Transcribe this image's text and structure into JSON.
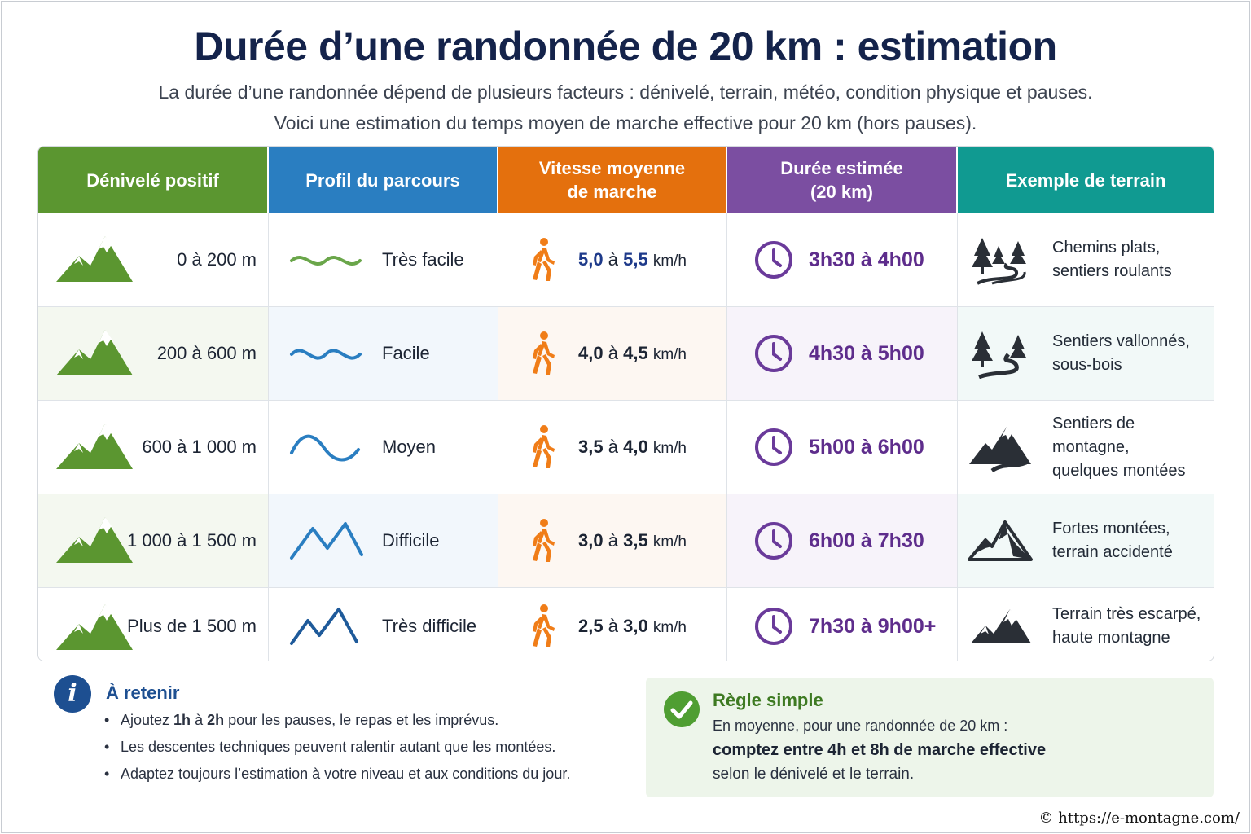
{
  "title": "Durée d’une randonnée de 20 km : estimation",
  "intro": {
    "line1": "La durée d’une randonnée dépend de plusieurs facteurs : dénivelé, terrain, météo, condition physique et pauses.",
    "line2": "Voici une estimation du temps moyen de marche effective pour 20 km (hors pauses)."
  },
  "table": {
    "headers": [
      {
        "line1": "Dénivelé positif",
        "line2": ""
      },
      {
        "line1": "Profil du parcours",
        "line2": ""
      },
      {
        "line1": "Vitesse moyenne",
        "line2": "de marche"
      },
      {
        "line1": "Durée estimée",
        "line2": "(20 km)"
      },
      {
        "line1": "Exemple de terrain",
        "line2": ""
      }
    ],
    "header_colors": [
      "#5b9630",
      "#2a7ec1",
      "#e4700d",
      "#7b4ea1",
      "#109a91"
    ],
    "rows": [
      {
        "elevation": "0 à 200 m",
        "level": "Très facile",
        "speed_a": "5,0",
        "speed_sep": "à",
        "speed_b": "5,5",
        "speed_unit": "km/h",
        "duration": "3h30 à 4h00",
        "terrain1": "Chemins plats,",
        "terrain2": "sentiers roulants"
      },
      {
        "elevation": "200 à 600 m",
        "level": "Facile",
        "speed_a": "4,0",
        "speed_sep": "à",
        "speed_b": "4,5",
        "speed_unit": "km/h",
        "duration": "4h30 à 5h00",
        "terrain1": "Sentiers vallonnés,",
        "terrain2": "sous-bois"
      },
      {
        "elevation": "600 à 1 000 m",
        "level": "Moyen",
        "speed_a": "3,5",
        "speed_sep": "à",
        "speed_b": "4,0",
        "speed_unit": "km/h",
        "duration": "5h00 à 6h00",
        "terrain1": "Sentiers de montagne,",
        "terrain2": "quelques montées"
      },
      {
        "elevation": "1 000 à 1 500 m",
        "level": "Difficile",
        "speed_a": "3,0",
        "speed_sep": "à",
        "speed_b": "3,5",
        "speed_unit": "km/h",
        "duration": "6h00 à 7h30",
        "terrain1": "Fortes montées,",
        "terrain2": "terrain accidenté"
      },
      {
        "elevation": "Plus de 1 500 m",
        "level": "Très difficile",
        "speed_a": "2,5",
        "speed_sep": "à",
        "speed_b": "3,0",
        "speed_unit": "km/h",
        "duration": "7h30 à 9h00+",
        "terrain1": "Terrain très escarpé,",
        "terrain2": "haute montagne"
      }
    ],
    "icons": {
      "elevation": "mountain-icon",
      "profile": "profile-wave-icon",
      "speed": "hiker-icon",
      "duration": "clock-icon",
      "terrain": [
        "forest-path-icon",
        "forest-path-icon",
        "mountain-range-icon",
        "mountain-range-icon",
        "mountain-range-icon"
      ]
    }
  },
  "retenir": {
    "icon": "info-icon",
    "icon_glyph": "i",
    "title": "À retenir",
    "b1_pre": "Ajoutez ",
    "b1_bold1": "1h",
    "b1_mid": " à ",
    "b1_bold2": "2h",
    "b1_post": " pour les pauses, le repas et les imprévus.",
    "b2": "Les descentes techniques peuvent ralentir autant que les montées.",
    "b3": "Adaptez toujours l’estimation à votre niveau et aux conditions du jour."
  },
  "rule": {
    "icon": "check-circle-icon",
    "title": "Règle simple",
    "line1": "En moyenne, pour une randonnée de 20 km :",
    "line2_pre": "comptez entre ",
    "line2_a": "4h",
    "line2_mid": " et ",
    "line2_b": "8h",
    "line2_post": " de marche effective",
    "line3": "selon le dénivelé et le terrain."
  },
  "credit": "© https://e-montagne.com/"
}
